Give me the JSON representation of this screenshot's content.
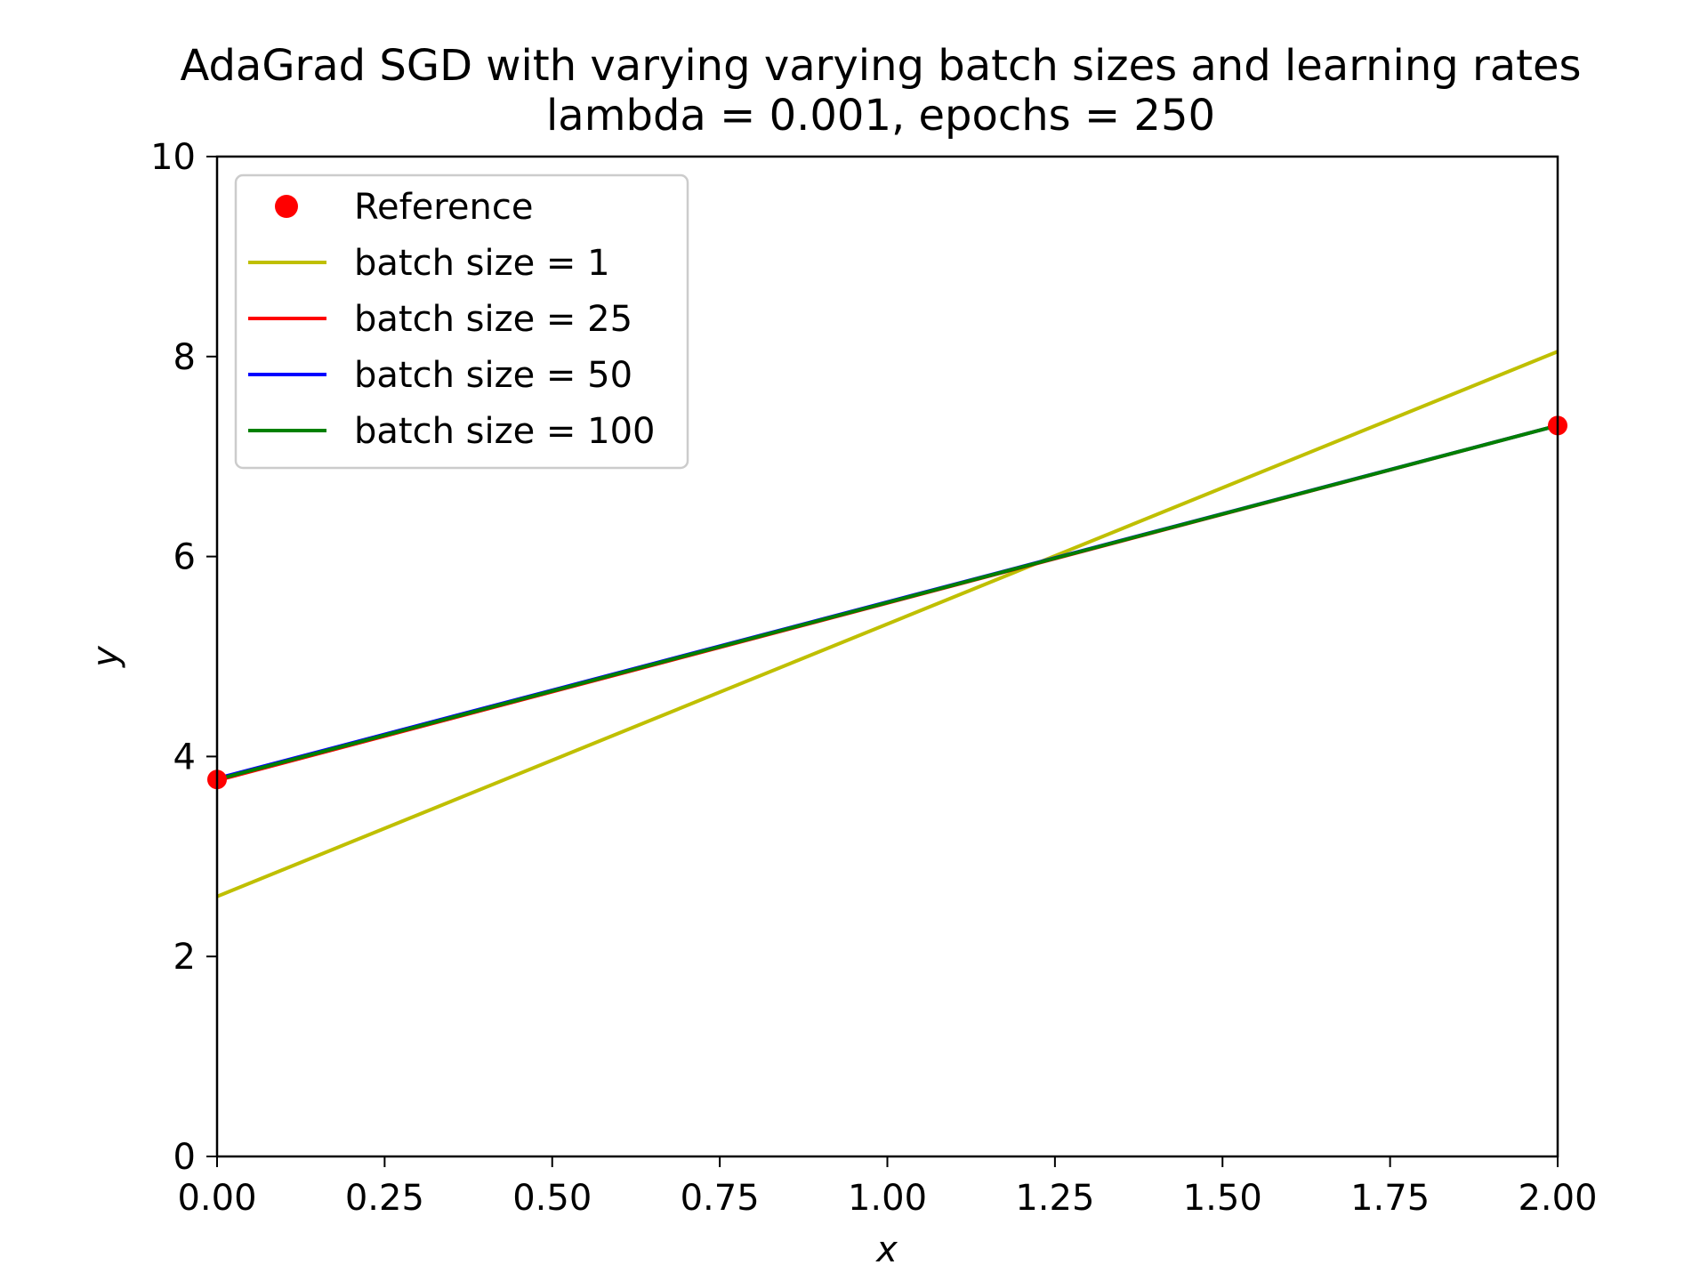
{
  "chart_data": {
    "type": "line",
    "title": "AdaGrad SGD with varying varying batch sizes and learning rates",
    "subtitle": "lambda = 0.001, epochs = 250",
    "xlabel": "x",
    "ylabel": "y",
    "xlim": [
      0,
      2
    ],
    "ylim": [
      0,
      10
    ],
    "x_ticks": [
      "0.00",
      "0.25",
      "0.50",
      "0.75",
      "1.00",
      "1.25",
      "1.50",
      "1.75",
      "2.00"
    ],
    "y_ticks": [
      "0",
      "2",
      "4",
      "6",
      "8",
      "10"
    ],
    "x_tick_values": [
      0,
      0.25,
      0.5,
      0.75,
      1.0,
      1.25,
      1.5,
      1.75,
      2.0
    ],
    "y_tick_values": [
      0,
      2,
      4,
      6,
      8,
      10
    ],
    "grid": false,
    "legend_position": "top-left",
    "reference": {
      "name": "Reference",
      "color": "#ff0000",
      "x": [
        0,
        2
      ],
      "y": [
        3.77,
        7.31
      ]
    },
    "series": [
      {
        "name": "batch size = 1",
        "color": "#bfbf00",
        "x": [
          0,
          2
        ],
        "y": [
          2.6,
          8.05
        ]
      },
      {
        "name": "batch size = 25",
        "color": "#ff0000",
        "x": [
          0,
          2
        ],
        "y": [
          3.76,
          7.31
        ]
      },
      {
        "name": "batch size = 50",
        "color": "#0000ff",
        "x": [
          0,
          2
        ],
        "y": [
          3.78,
          7.31
        ]
      },
      {
        "name": "batch size = 100",
        "color": "#008000",
        "x": [
          0,
          2
        ],
        "y": [
          3.77,
          7.31
        ]
      }
    ]
  }
}
